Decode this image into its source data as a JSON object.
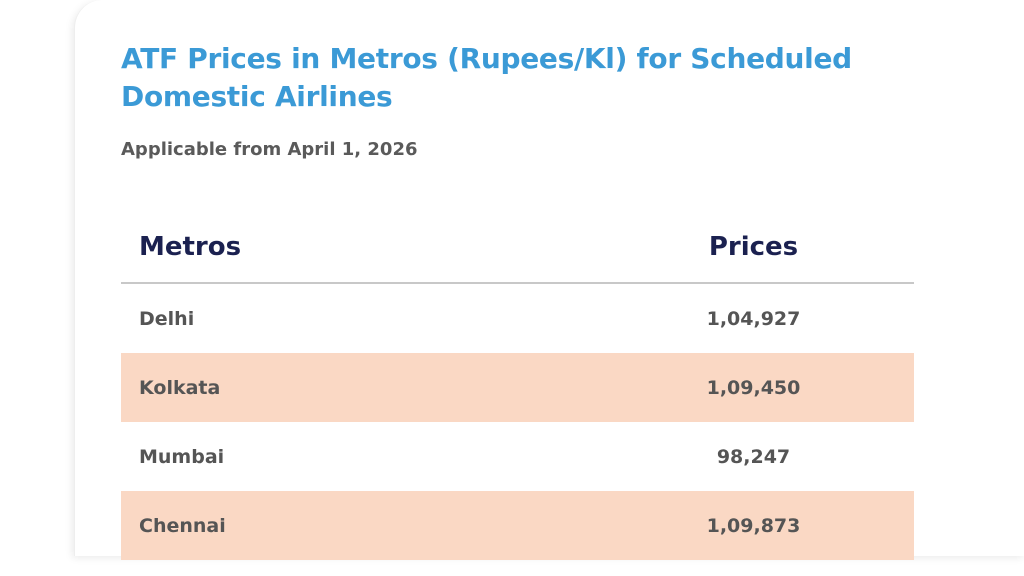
{
  "header": {
    "title": "ATF Prices in Metros (Rupees/Kl) for Scheduled Domestic Airlines",
    "subtitle": "Applicable from April 1, 2026"
  },
  "table": {
    "columns": [
      "Metros",
      "Prices"
    ],
    "rows": [
      [
        "Delhi",
        "1,04,927"
      ],
      [
        "Kolkata",
        "1,09,450"
      ],
      [
        "Mumbai",
        "98,247"
      ],
      [
        "Chennai",
        "1,09,873"
      ]
    ]
  }
}
